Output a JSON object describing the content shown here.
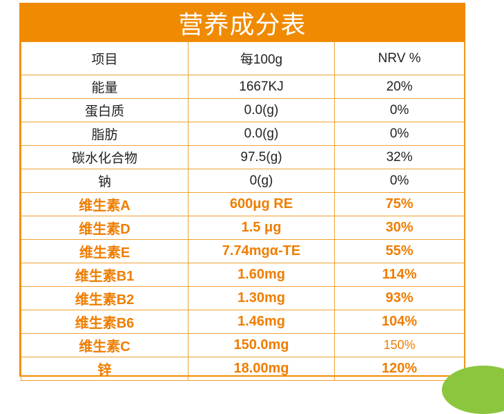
{
  "title": "营养成分表",
  "header": {
    "col1": "项目",
    "col2": "每100g",
    "col3": "NRV %"
  },
  "rows": [
    {
      "item": "能量",
      "per100g": "1667KJ",
      "nrv": "20%"
    },
    {
      "item": "蛋白质",
      "per100g": "0.0(g)",
      "nrv": "0%"
    },
    {
      "item": "脂肪",
      "per100g": "0.0(g)",
      "nrv": "0%"
    },
    {
      "item": "碳水化合物",
      "per100g": "97.5(g)",
      "nrv": "32%"
    },
    {
      "item": "钠",
      "per100g": "0(g)",
      "nrv": "0%"
    },
    {
      "item": "维生素A",
      "per100g": "600μg RE",
      "nrv": "75%"
    },
    {
      "item": "维生素D",
      "per100g": "1.5 μg",
      "nrv": "30%"
    },
    {
      "item": "维生素E",
      "per100g": "7.74mgα-TE",
      "nrv": "55%"
    },
    {
      "item": "维生素B1",
      "per100g": "1.60mg",
      "nrv": "114%"
    },
    {
      "item": "维生素B2",
      "per100g": "1.30mg",
      "nrv": "93%"
    },
    {
      "item": "维生素B6",
      "per100g": "1.46mg",
      "nrv": "104%"
    },
    {
      "item": "维生素C",
      "per100g": "150.0mg",
      "nrv": "150%"
    },
    {
      "item": "锌",
      "per100g": "18.00mg",
      "nrv": "120%"
    }
  ],
  "colors": {
    "accent": "#f08a00",
    "highlight_text": "#ef7d00",
    "corner_green": "#8cc63f"
  }
}
